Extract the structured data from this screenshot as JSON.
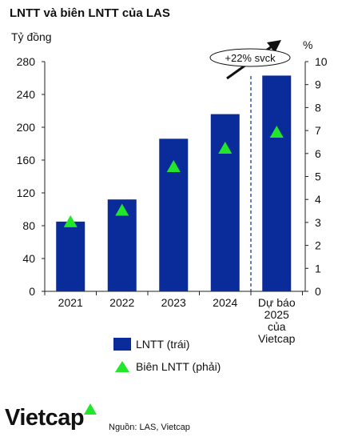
{
  "title": "LNTT và biên LNTT của LAS",
  "y_unit_left": "Tỷ đồng",
  "y_unit_right": "%",
  "callout": "+22% svck",
  "legend": {
    "bar_label": "LNTT (trái)",
    "marker_label": "Biên LNTT (phải)"
  },
  "logo": "Vietcap",
  "source": "Nguồn: LAS, Vietcap",
  "colors": {
    "bar": "#0a2b9a",
    "marker": "#22e62a",
    "divider": "#0a2b9a",
    "text": "#111111"
  },
  "chart_data": {
    "type": "bar",
    "categories": [
      "2021",
      "2022",
      "2023",
      "2024",
      "Dự báo 2025 của Vietcap"
    ],
    "category_lines": [
      [
        "2021"
      ],
      [
        "2022"
      ],
      [
        "2023"
      ],
      [
        "2024"
      ],
      [
        "Dự báo",
        "2025",
        "của",
        "Vietcap"
      ]
    ],
    "series": [
      {
        "name": "LNTT (trái)",
        "type": "bar",
        "axis": "left",
        "values": [
          85,
          112,
          186,
          216,
          263
        ]
      },
      {
        "name": "Biên LNTT (phải)",
        "type": "scatter",
        "marker": "triangle",
        "axis": "right",
        "values": [
          3.0,
          3.5,
          5.4,
          6.2,
          6.9
        ]
      }
    ],
    "y_left": {
      "ylim": [
        0,
        280
      ],
      "ticks": [
        0,
        40,
        80,
        120,
        160,
        200,
        240,
        280
      ]
    },
    "y_right": {
      "ylim": [
        0,
        10
      ],
      "ticks": [
        0,
        1,
        2,
        3,
        4,
        5,
        6,
        7,
        8,
        9,
        10
      ]
    },
    "forecast_divider_after_index": 3,
    "grid": false
  }
}
